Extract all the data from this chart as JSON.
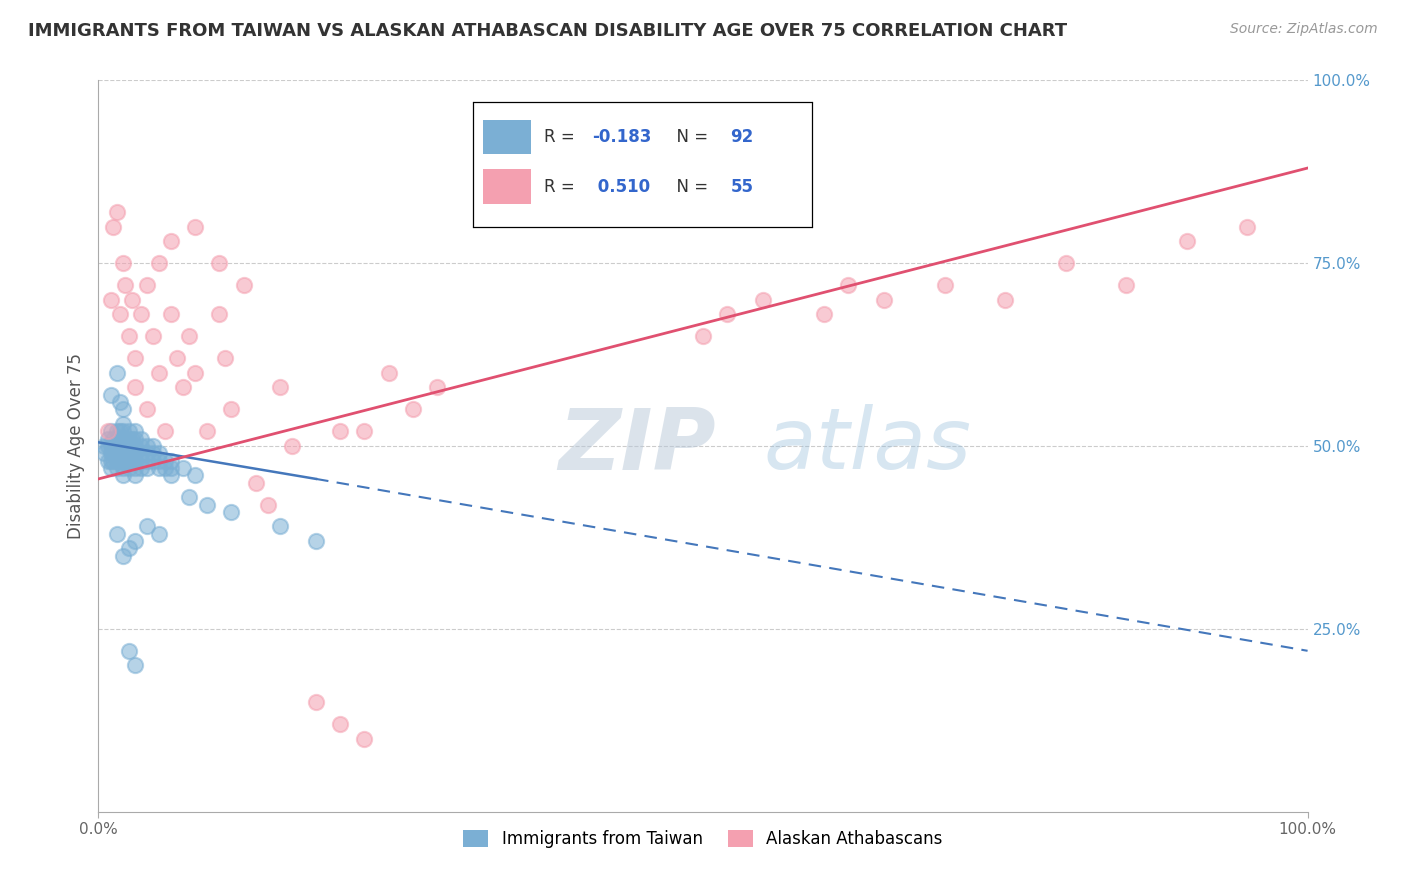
{
  "title": "IMMIGRANTS FROM TAIWAN VS ALASKAN ATHABASCAN DISABILITY AGE OVER 75 CORRELATION CHART",
  "source_text": "Source: ZipAtlas.com",
  "ylabel": "Disability Age Over 75",
  "xlim": [
    0.0,
    1.0
  ],
  "ylim": [
    0.0,
    1.0
  ],
  "legend": {
    "blue_r": "-0.183",
    "blue_n": "92",
    "pink_r": "0.510",
    "pink_n": "55"
  },
  "blue_color": "#7BAFD4",
  "pink_color": "#F4A0B0",
  "blue_line_color": "#4477BB",
  "pink_line_color": "#E05070",
  "blue_scatter": [
    [
      0.005,
      0.5
    ],
    [
      0.005,
      0.49
    ],
    [
      0.008,
      0.51
    ],
    [
      0.008,
      0.48
    ],
    [
      0.008,
      0.5
    ],
    [
      0.01,
      0.52
    ],
    [
      0.01,
      0.49
    ],
    [
      0.01,
      0.5
    ],
    [
      0.01,
      0.48
    ],
    [
      0.01,
      0.47
    ],
    [
      0.012,
      0.51
    ],
    [
      0.012,
      0.5
    ],
    [
      0.012,
      0.49
    ],
    [
      0.012,
      0.48
    ],
    [
      0.015,
      0.52
    ],
    [
      0.015,
      0.51
    ],
    [
      0.015,
      0.5
    ],
    [
      0.015,
      0.49
    ],
    [
      0.015,
      0.48
    ],
    [
      0.015,
      0.47
    ],
    [
      0.018,
      0.52
    ],
    [
      0.018,
      0.51
    ],
    [
      0.018,
      0.5
    ],
    [
      0.018,
      0.49
    ],
    [
      0.018,
      0.48
    ],
    [
      0.02,
      0.53
    ],
    [
      0.02,
      0.52
    ],
    [
      0.02,
      0.51
    ],
    [
      0.02,
      0.5
    ],
    [
      0.02,
      0.49
    ],
    [
      0.02,
      0.48
    ],
    [
      0.02,
      0.47
    ],
    [
      0.02,
      0.46
    ],
    [
      0.022,
      0.51
    ],
    [
      0.022,
      0.5
    ],
    [
      0.022,
      0.49
    ],
    [
      0.022,
      0.48
    ],
    [
      0.025,
      0.52
    ],
    [
      0.025,
      0.51
    ],
    [
      0.025,
      0.5
    ],
    [
      0.025,
      0.49
    ],
    [
      0.025,
      0.48
    ],
    [
      0.025,
      0.47
    ],
    [
      0.028,
      0.51
    ],
    [
      0.028,
      0.5
    ],
    [
      0.028,
      0.49
    ],
    [
      0.028,
      0.48
    ],
    [
      0.03,
      0.52
    ],
    [
      0.03,
      0.51
    ],
    [
      0.03,
      0.5
    ],
    [
      0.03,
      0.49
    ],
    [
      0.03,
      0.48
    ],
    [
      0.03,
      0.47
    ],
    [
      0.03,
      0.46
    ],
    [
      0.035,
      0.51
    ],
    [
      0.035,
      0.5
    ],
    [
      0.035,
      0.49
    ],
    [
      0.035,
      0.48
    ],
    [
      0.035,
      0.47
    ],
    [
      0.04,
      0.5
    ],
    [
      0.04,
      0.49
    ],
    [
      0.04,
      0.48
    ],
    [
      0.04,
      0.47
    ],
    [
      0.045,
      0.5
    ],
    [
      0.045,
      0.49
    ],
    [
      0.045,
      0.48
    ],
    [
      0.05,
      0.49
    ],
    [
      0.05,
      0.48
    ],
    [
      0.05,
      0.47
    ],
    [
      0.055,
      0.48
    ],
    [
      0.055,
      0.47
    ],
    [
      0.06,
      0.48
    ],
    [
      0.06,
      0.47
    ],
    [
      0.07,
      0.47
    ],
    [
      0.08,
      0.46
    ],
    [
      0.01,
      0.57
    ],
    [
      0.015,
      0.6
    ],
    [
      0.018,
      0.56
    ],
    [
      0.02,
      0.55
    ],
    [
      0.06,
      0.46
    ],
    [
      0.075,
      0.43
    ],
    [
      0.09,
      0.42
    ],
    [
      0.11,
      0.41
    ],
    [
      0.15,
      0.39
    ],
    [
      0.18,
      0.37
    ],
    [
      0.015,
      0.38
    ],
    [
      0.02,
      0.35
    ],
    [
      0.025,
      0.36
    ],
    [
      0.03,
      0.37
    ],
    [
      0.04,
      0.39
    ],
    [
      0.05,
      0.38
    ],
    [
      0.025,
      0.22
    ],
    [
      0.03,
      0.2
    ]
  ],
  "pink_scatter": [
    [
      0.008,
      0.52
    ],
    [
      0.01,
      0.7
    ],
    [
      0.012,
      0.8
    ],
    [
      0.015,
      0.82
    ],
    [
      0.018,
      0.68
    ],
    [
      0.02,
      0.75
    ],
    [
      0.022,
      0.72
    ],
    [
      0.025,
      0.65
    ],
    [
      0.028,
      0.7
    ],
    [
      0.03,
      0.62
    ],
    [
      0.03,
      0.58
    ],
    [
      0.035,
      0.68
    ],
    [
      0.04,
      0.72
    ],
    [
      0.04,
      0.55
    ],
    [
      0.045,
      0.65
    ],
    [
      0.05,
      0.6
    ],
    [
      0.055,
      0.52
    ],
    [
      0.06,
      0.68
    ],
    [
      0.065,
      0.62
    ],
    [
      0.07,
      0.58
    ],
    [
      0.075,
      0.65
    ],
    [
      0.08,
      0.6
    ],
    [
      0.09,
      0.52
    ],
    [
      0.1,
      0.68
    ],
    [
      0.105,
      0.62
    ],
    [
      0.11,
      0.55
    ],
    [
      0.13,
      0.45
    ],
    [
      0.14,
      0.42
    ],
    [
      0.15,
      0.58
    ],
    [
      0.16,
      0.5
    ],
    [
      0.2,
      0.52
    ],
    [
      0.22,
      0.52
    ],
    [
      0.24,
      0.6
    ],
    [
      0.26,
      0.55
    ],
    [
      0.28,
      0.58
    ],
    [
      0.05,
      0.75
    ],
    [
      0.06,
      0.78
    ],
    [
      0.08,
      0.8
    ],
    [
      0.1,
      0.75
    ],
    [
      0.12,
      0.72
    ],
    [
      0.5,
      0.65
    ],
    [
      0.52,
      0.68
    ],
    [
      0.55,
      0.7
    ],
    [
      0.6,
      0.68
    ],
    [
      0.62,
      0.72
    ],
    [
      0.65,
      0.7
    ],
    [
      0.7,
      0.72
    ],
    [
      0.75,
      0.7
    ],
    [
      0.8,
      0.75
    ],
    [
      0.85,
      0.72
    ],
    [
      0.9,
      0.78
    ],
    [
      0.95,
      0.8
    ],
    [
      0.18,
      0.15
    ],
    [
      0.2,
      0.12
    ],
    [
      0.22,
      0.1
    ]
  ],
  "blue_line_solid": {
    "x0": 0.0,
    "x1": 0.18,
    "y0": 0.505,
    "y1": 0.455
  },
  "blue_line_dashed": {
    "x0": 0.18,
    "x1": 1.0,
    "y0": 0.455,
    "y1": 0.22
  },
  "pink_line": {
    "x0": 0.0,
    "x1": 1.0,
    "y0": 0.455,
    "y1": 0.88
  },
  "grid_color": "#CCCCCC",
  "background_color": "#FFFFFF",
  "title_color": "#333333",
  "right_label_color": "#5599CC",
  "watermark_color": "#C8D8E8",
  "watermark_alpha": 0.5
}
